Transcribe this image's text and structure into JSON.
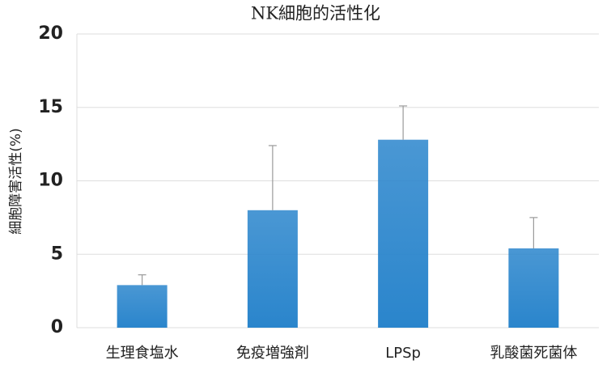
{
  "chart_data": {
    "type": "bar",
    "title": "NK細胞的活性化",
    "y_label": "細胞障害活性(%)",
    "categories": [
      "生理食塩水",
      "免疫増強剤",
      "LPSp",
      "乳酸菌死菌体"
    ],
    "values": [
      2.9,
      8.0,
      12.8,
      5.4
    ],
    "errors": [
      0.7,
      4.4,
      2.3,
      2.1
    ],
    "color": "#2a85cc",
    "error_color": "#9a9a9a",
    "ylim": [
      0,
      20
    ],
    "yticks": [
      0,
      5,
      10,
      15,
      20
    ],
    "grid": true
  }
}
